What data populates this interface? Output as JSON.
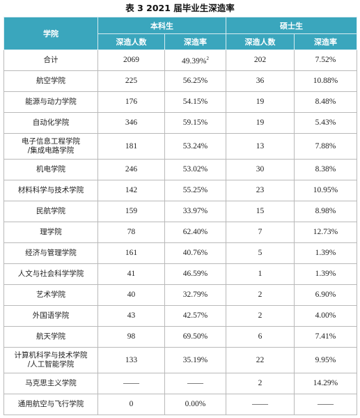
{
  "caption": "表 3    2021 届毕业生深造率",
  "header": {
    "school": "学院",
    "undergrad": "本科生",
    "master": "硕士生",
    "count": "深造人数",
    "rate": "深造率"
  },
  "rows": [
    {
      "name": "合计",
      "u_count": "2069",
      "u_rate": "49.39%",
      "u_note": "2",
      "m_count": "202",
      "m_rate": "7.52%"
    },
    {
      "name": "航空学院",
      "u_count": "225",
      "u_rate": "56.25%",
      "m_count": "36",
      "m_rate": "10.88%"
    },
    {
      "name": "能源与动力学院",
      "u_count": "176",
      "u_rate": "54.15%",
      "m_count": "19",
      "m_rate": "8.48%"
    },
    {
      "name": "自动化学院",
      "u_count": "346",
      "u_rate": "59.15%",
      "m_count": "19",
      "m_rate": "5.43%"
    },
    {
      "name": "电子信息工程学院",
      "name2": "/集成电路学院",
      "u_count": "181",
      "u_rate": "53.24%",
      "m_count": "13",
      "m_rate": "7.88%"
    },
    {
      "name": "机电学院",
      "u_count": "246",
      "u_rate": "53.02%",
      "m_count": "30",
      "m_rate": "8.38%"
    },
    {
      "name": "材料科学与技术学院",
      "u_count": "142",
      "u_rate": "55.25%",
      "m_count": "23",
      "m_rate": "10.95%"
    },
    {
      "name": "民航学院",
      "u_count": "159",
      "u_rate": "33.97%",
      "m_count": "15",
      "m_rate": "8.98%"
    },
    {
      "name": "理学院",
      "u_count": "78",
      "u_rate": "62.40%",
      "m_count": "7",
      "m_rate": "12.73%"
    },
    {
      "name": "经济与管理学院",
      "u_count": "161",
      "u_rate": "40.76%",
      "m_count": "5",
      "m_rate": "1.39%"
    },
    {
      "name": "人文与社会科学学院",
      "u_count": "41",
      "u_rate": "46.59%",
      "m_count": "1",
      "m_rate": "1.39%"
    },
    {
      "name": "艺术学院",
      "u_count": "40",
      "u_rate": "32.79%",
      "m_count": "2",
      "m_rate": "6.90%"
    },
    {
      "name": "外国语学院",
      "u_count": "43",
      "u_rate": "42.57%",
      "m_count": "2",
      "m_rate": "4.00%"
    },
    {
      "name": "航天学院",
      "u_count": "98",
      "u_rate": "69.50%",
      "m_count": "6",
      "m_rate": "7.41%"
    },
    {
      "name": "计算机科学与技术学院",
      "name2": "/人工智能学院",
      "u_count": "133",
      "u_rate": "35.19%",
      "m_count": "22",
      "m_rate": "9.95%"
    },
    {
      "name": "马克思主义学院",
      "u_count": "——",
      "u_rate": "——",
      "m_count": "2",
      "m_rate": "14.29%"
    },
    {
      "name": "通用航空与飞行学院",
      "u_count": "0",
      "u_rate": "0.00%",
      "m_count": "——",
      "m_rate": "——"
    }
  ]
}
